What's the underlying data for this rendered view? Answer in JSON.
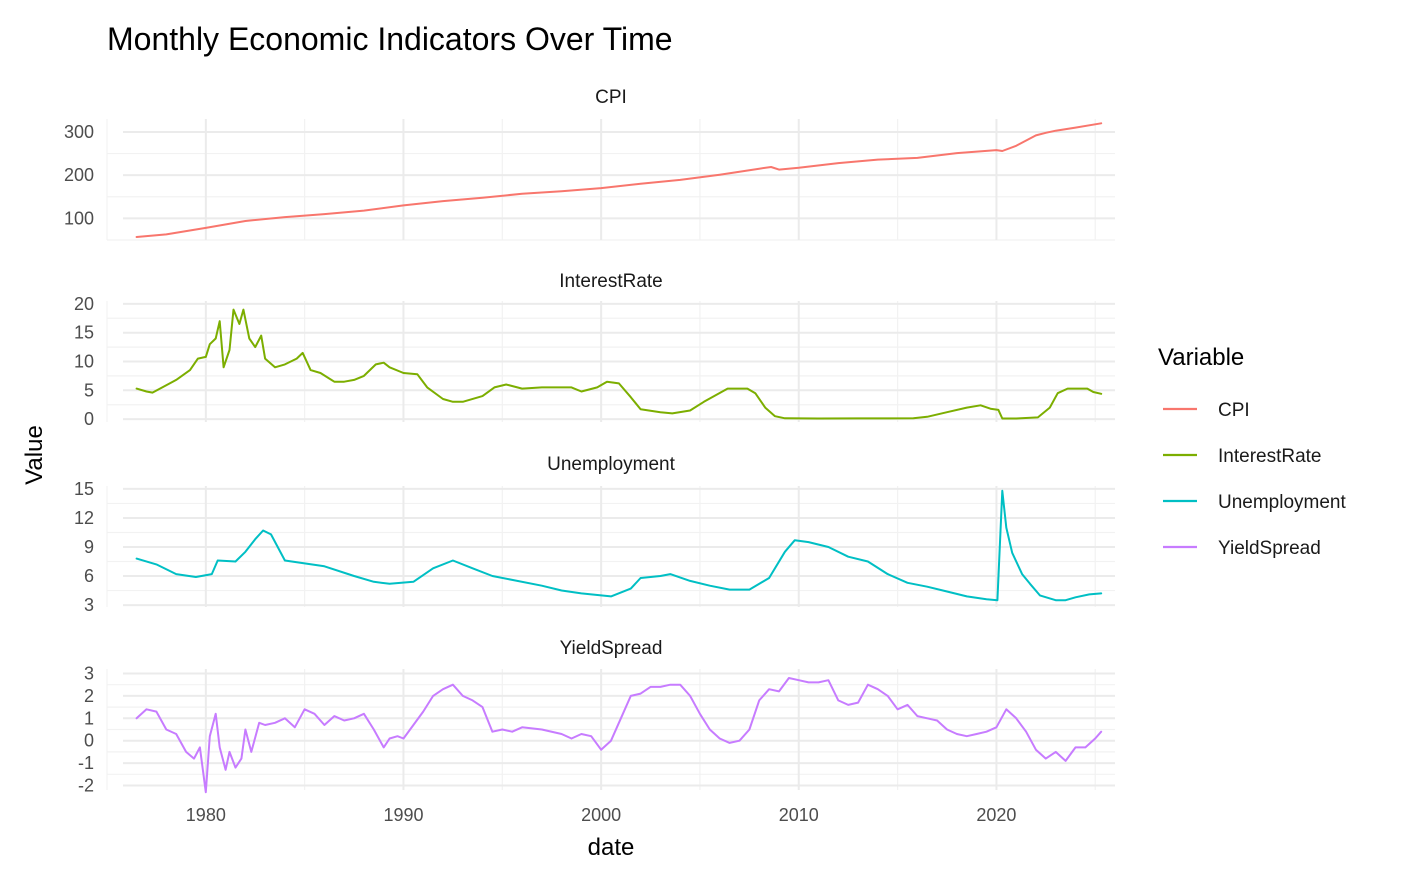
{
  "chart_data": {
    "type": "line",
    "title": "Monthly Economic Indicators Over Time",
    "xlabel": "date",
    "ylabel": "Value",
    "xlim": [
      1975,
      2026
    ],
    "x_ticks": [
      1980,
      1990,
      2000,
      2010,
      2020
    ],
    "legend": {
      "title": "Variable",
      "position": "right",
      "entries": [
        "CPI",
        "InterestRate",
        "Unemployment",
        "YieldSpread"
      ]
    },
    "facets": [
      {
        "name": "CPI",
        "color": "#F8766D",
        "ylim": [
          50,
          330
        ],
        "y_ticks": [
          100,
          200,
          300
        ],
        "x": [
          1976.5,
          1978,
          1980,
          1982,
          1984,
          1986,
          1988,
          1990,
          1992,
          1994,
          1996,
          1998,
          2000,
          2002,
          2004,
          2006,
          2008,
          2008.6,
          2009,
          2010,
          2012,
          2014,
          2016,
          2018,
          2020,
          2020.3,
          2021,
          2022,
          2022.5,
          2023,
          2024,
          2025.3
        ],
        "y": [
          57,
          63,
          78,
          94,
          103,
          110,
          118,
          130,
          140,
          148,
          157,
          163,
          170,
          180,
          189,
          201,
          215,
          219,
          213,
          217,
          228,
          236,
          240,
          251,
          258,
          256,
          268,
          292,
          298,
          303,
          310,
          320
        ]
      },
      {
        "name": "InterestRate",
        "color": "#7CAE00",
        "ylim": [
          -0.5,
          20.5
        ],
        "y_ticks": [
          0,
          5,
          10,
          15,
          20
        ],
        "x": [
          1976.5,
          1977,
          1977.3,
          1977.8,
          1978.5,
          1979.2,
          1979.6,
          1980,
          1980.2,
          1980.5,
          1980.7,
          1980.9,
          1981.2,
          1981.4,
          1981.7,
          1981.9,
          1982.2,
          1982.5,
          1982.8,
          1983,
          1983.5,
          1984,
          1984.6,
          1984.9,
          1985.3,
          1985.8,
          1986.5,
          1987,
          1987.5,
          1988,
          1988.6,
          1989,
          1989.3,
          1990,
          1990.7,
          1991.2,
          1992,
          1992.5,
          1993,
          1994,
          1994.6,
          1995.2,
          1996,
          1997,
          1998.5,
          1999,
          1999.8,
          2000.3,
          2000.9,
          2001.5,
          2002,
          2003,
          2003.6,
          2004.5,
          2005.2,
          2006.4,
          2007.4,
          2007.8,
          2008.3,
          2008.8,
          2009.3,
          2011,
          2013,
          2015.8,
          2016.5,
          2017.5,
          2018.5,
          2019.2,
          2019.7,
          2020.1,
          2020.3,
          2021,
          2022.1,
          2022.7,
          2023.1,
          2023.6,
          2024.6,
          2024.9,
          2025.3
        ],
        "y": [
          5.3,
          4.8,
          4.6,
          5.5,
          6.8,
          8.5,
          10.5,
          10.8,
          13,
          14,
          17,
          9,
          12,
          19,
          16.5,
          19,
          14,
          12.5,
          14.5,
          10.5,
          9,
          9.5,
          10.5,
          11.5,
          8.5,
          8,
          6.5,
          6.5,
          6.8,
          7.5,
          9.5,
          9.8,
          9,
          8,
          7.8,
          5.5,
          3.5,
          3,
          3,
          4,
          5.5,
          6,
          5.3,
          5.5,
          5.5,
          4.8,
          5.5,
          6.5,
          6.2,
          3.8,
          1.7,
          1.2,
          1,
          1.5,
          3,
          5.3,
          5.3,
          4.5,
          2,
          0.5,
          0.15,
          0.1,
          0.12,
          0.15,
          0.4,
          1.2,
          2,
          2.4,
          1.8,
          1.6,
          0.1,
          0.1,
          0.3,
          2,
          4.5,
          5.3,
          5.3,
          4.7,
          4.4
        ]
      },
      {
        "name": "Unemployment",
        "color": "#00BFC4",
        "ylim": [
          2.8,
          15.3
        ],
        "y_ticks": [
          3,
          6,
          9,
          12,
          15
        ],
        "x": [
          1976.5,
          1977.5,
          1978.5,
          1979.5,
          1980.3,
          1980.6,
          1981.5,
          1982,
          1982.5,
          1982.9,
          1983.3,
          1984,
          1985,
          1986,
          1987.5,
          1988.5,
          1989.3,
          1990.5,
          1991.5,
          1992.5,
          1993.5,
          1994.5,
          1995.5,
          1997,
          1998,
          1999,
          2000.5,
          2001.5,
          2002,
          2003,
          2003.5,
          2004.5,
          2005.5,
          2006.5,
          2007.5,
          2008.5,
          2009.3,
          2009.8,
          2010.5,
          2011.5,
          2012.5,
          2013.5,
          2014.5,
          2015.5,
          2016.5,
          2017.5,
          2018.5,
          2019.5,
          2020.05,
          2020.3,
          2020.5,
          2020.8,
          2021.3,
          2021.7,
          2022.2,
          2023,
          2023.5,
          2024,
          2024.7,
          2025.3
        ],
        "y": [
          7.8,
          7.2,
          6.2,
          5.9,
          6.2,
          7.6,
          7.5,
          8.5,
          9.8,
          10.7,
          10.3,
          7.6,
          7.3,
          7.0,
          6.0,
          5.4,
          5.2,
          5.4,
          6.8,
          7.6,
          6.8,
          6.0,
          5.6,
          5.0,
          4.5,
          4.2,
          3.9,
          4.7,
          5.8,
          6.0,
          6.2,
          5.5,
          5.0,
          4.6,
          4.6,
          5.8,
          8.5,
          9.7,
          9.5,
          9.0,
          8.0,
          7.5,
          6.2,
          5.3,
          4.9,
          4.4,
          3.9,
          3.6,
          3.5,
          14.8,
          11,
          8.4,
          6.2,
          5.2,
          4.0,
          3.5,
          3.5,
          3.8,
          4.1,
          4.2
        ]
      },
      {
        "name": "YieldSpread",
        "color": "#C77CFF",
        "ylim": [
          -2.2,
          3.2
        ],
        "y_ticks": [
          -2,
          -1,
          0,
          1,
          2,
          3
        ],
        "x": [
          1976.5,
          1977,
          1977.5,
          1978,
          1978.5,
          1979,
          1979.4,
          1979.7,
          1980,
          1980.2,
          1980.5,
          1980.7,
          1981,
          1981.2,
          1981.5,
          1981.8,
          1982,
          1982.3,
          1982.7,
          1983,
          1983.5,
          1984,
          1984.5,
          1985,
          1985.5,
          1986,
          1986.5,
          1987,
          1987.5,
          1988,
          1988.5,
          1989,
          1989.3,
          1989.7,
          1990,
          1990.5,
          1991,
          1991.5,
          1992,
          1992.5,
          1993,
          1993.5,
          1994,
          1994.5,
          1995,
          1995.5,
          1996,
          1997,
          1998,
          1998.5,
          1999,
          1999.5,
          2000,
          2000.5,
          2001,
          2001.5,
          2002,
          2002.5,
          2003,
          2003.5,
          2004,
          2004.5,
          2005,
          2005.5,
          2006,
          2006.5,
          2007,
          2007.5,
          2008,
          2008.5,
          2009,
          2009.5,
          2010,
          2010.5,
          2011,
          2011.5,
          2012,
          2012.5,
          2013,
          2013.5,
          2014,
          2014.5,
          2015,
          2015.5,
          2016,
          2016.5,
          2017,
          2017.5,
          2018,
          2018.5,
          2019,
          2019.5,
          2020,
          2020.5,
          2021,
          2021.5,
          2022,
          2022.5,
          2023,
          2023.5,
          2024,
          2024.5,
          2025,
          2025.3
        ],
        "y": [
          1.0,
          1.4,
          1.3,
          0.5,
          0.3,
          -0.5,
          -0.8,
          -0.3,
          -2.3,
          0.2,
          1.2,
          -0.3,
          -1.3,
          -0.5,
          -1.2,
          -0.8,
          0.5,
          -0.5,
          0.8,
          0.7,
          0.8,
          1.0,
          0.6,
          1.4,
          1.2,
          0.7,
          1.1,
          0.9,
          1.0,
          1.2,
          0.5,
          -0.3,
          0.1,
          0.2,
          0.1,
          0.7,
          1.3,
          2.0,
          2.3,
          2.5,
          2.0,
          1.8,
          1.5,
          0.4,
          0.5,
          0.4,
          0.6,
          0.5,
          0.3,
          0.1,
          0.3,
          0.2,
          -0.4,
          0.0,
          1.0,
          2.0,
          2.1,
          2.4,
          2.4,
          2.5,
          2.5,
          2.0,
          1.2,
          0.5,
          0.1,
          -0.1,
          0.0,
          0.5,
          1.8,
          2.3,
          2.2,
          2.8,
          2.7,
          2.6,
          2.6,
          2.7,
          1.8,
          1.6,
          1.7,
          2.5,
          2.3,
          2.0,
          1.4,
          1.6,
          1.1,
          1.0,
          0.9,
          0.5,
          0.3,
          0.2,
          0.3,
          0.4,
          0.6,
          1.4,
          1.0,
          0.4,
          -0.4,
          -0.8,
          -0.5,
          -0.9,
          -0.3,
          -0.3,
          0.1,
          0.4
        ]
      }
    ]
  }
}
